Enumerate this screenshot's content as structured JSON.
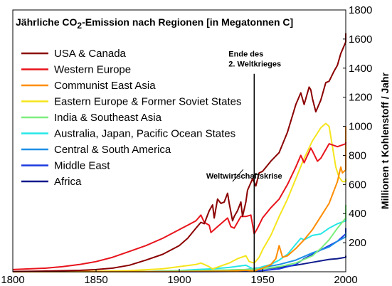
{
  "chart_data": {
    "type": "line",
    "title": "Jährliche CO2-Emission nach Regionen [in Megatonnen C]",
    "title_parts": {
      "pre": "Jährliche CO",
      "sub": "2",
      "post": "-Emission nach Regionen [in Megatonnen C]"
    },
    "ylabel": "Millionen t Kohlenstoff / Jahr",
    "xlabel": "",
    "xlim": [
      1800,
      2000
    ],
    "ylim": [
      0,
      1800
    ],
    "x_ticks": [
      "1800",
      "1850",
      "1900",
      "1950",
      "2000"
    ],
    "y_ticks": [
      "200",
      "400",
      "600",
      "800",
      "1000",
      "1200",
      "1400",
      "1600",
      "1800"
    ],
    "y_axis_position": "right",
    "grid": false,
    "legend_position": "top-left",
    "annotations": [
      {
        "text": "Ende des",
        "x": 1945,
        "y": 1480
      },
      {
        "text": "2. Weltkrieges",
        "x": 1945,
        "y": 1410
      },
      {
        "text": "Weltwirtschaftskrise",
        "x": 1929,
        "y": 640
      }
    ],
    "vline": {
      "x": 1945
    },
    "series": [
      {
        "name": "USA & Canada",
        "color": "#8b0000",
        "points": [
          [
            1800,
            2
          ],
          [
            1820,
            5
          ],
          [
            1840,
            10
          ],
          [
            1850,
            15
          ],
          [
            1860,
            25
          ],
          [
            1870,
            45
          ],
          [
            1880,
            80
          ],
          [
            1890,
            120
          ],
          [
            1900,
            180
          ],
          [
            1905,
            230
          ],
          [
            1910,
            300
          ],
          [
            1913,
            340
          ],
          [
            1915,
            330
          ],
          [
            1918,
            420
          ],
          [
            1920,
            460
          ],
          [
            1921,
            370
          ],
          [
            1923,
            500
          ],
          [
            1925,
            470
          ],
          [
            1927,
            480
          ],
          [
            1929,
            540
          ],
          [
            1930,
            470
          ],
          [
            1932,
            350
          ],
          [
            1933,
            380
          ],
          [
            1935,
            420
          ],
          [
            1937,
            480
          ],
          [
            1938,
            380
          ],
          [
            1940,
            480
          ],
          [
            1941,
            560
          ],
          [
            1944,
            640
          ],
          [
            1946,
            590
          ],
          [
            1948,
            680
          ],
          [
            1950,
            690
          ],
          [
            1955,
            760
          ],
          [
            1960,
            820
          ],
          [
            1965,
            960
          ],
          [
            1970,
            1150
          ],
          [
            1973,
            1230
          ],
          [
            1975,
            1150
          ],
          [
            1978,
            1270
          ],
          [
            1979,
            1250
          ],
          [
            1980,
            1190
          ],
          [
            1982,
            1100
          ],
          [
            1985,
            1180
          ],
          [
            1988,
            1300
          ],
          [
            1990,
            1310
          ],
          [
            1993,
            1380
          ],
          [
            1995,
            1420
          ],
          [
            1997,
            1500
          ],
          [
            2000,
            1580
          ],
          [
            2003,
            1610
          ],
          [
            2005,
            1640
          ]
        ]
      },
      {
        "name": "Western Europe",
        "color": "#e8141c",
        "points": [
          [
            1800,
            15
          ],
          [
            1820,
            25
          ],
          [
            1830,
            35
          ],
          [
            1840,
            50
          ],
          [
            1850,
            70
          ],
          [
            1860,
            100
          ],
          [
            1870,
            140
          ],
          [
            1880,
            180
          ],
          [
            1890,
            230
          ],
          [
            1900,
            290
          ],
          [
            1905,
            320
          ],
          [
            1910,
            350
          ],
          [
            1913,
            390
          ],
          [
            1915,
            340
          ],
          [
            1918,
            320
          ],
          [
            1919,
            270
          ],
          [
            1921,
            290
          ],
          [
            1925,
            330
          ],
          [
            1929,
            370
          ],
          [
            1931,
            310
          ],
          [
            1933,
            300
          ],
          [
            1935,
            340
          ],
          [
            1937,
            380
          ],
          [
            1940,
            380
          ],
          [
            1943,
            390
          ],
          [
            1945,
            260
          ],
          [
            1947,
            300
          ],
          [
            1950,
            370
          ],
          [
            1955,
            440
          ],
          [
            1960,
            500
          ],
          [
            1965,
            600
          ],
          [
            1970,
            720
          ],
          [
            1973,
            800
          ],
          [
            1975,
            750
          ],
          [
            1979,
            850
          ],
          [
            1980,
            830
          ],
          [
            1983,
            760
          ],
          [
            1985,
            780
          ],
          [
            1990,
            880
          ],
          [
            1995,
            860
          ],
          [
            2000,
            880
          ],
          [
            2005,
            890
          ]
        ]
      },
      {
        "name": "Communist East Asia",
        "color": "#ff8c00",
        "points": [
          [
            1800,
            0
          ],
          [
            1900,
            2
          ],
          [
            1930,
            5
          ],
          [
            1940,
            10
          ],
          [
            1945,
            5
          ],
          [
            1950,
            25
          ],
          [
            1955,
            50
          ],
          [
            1958,
            90
          ],
          [
            1960,
            180
          ],
          [
            1962,
            100
          ],
          [
            1965,
            110
          ],
          [
            1970,
            160
          ],
          [
            1975,
            220
          ],
          [
            1980,
            290
          ],
          [
            1985,
            380
          ],
          [
            1990,
            470
          ],
          [
            1995,
            620
          ],
          [
            1997,
            720
          ],
          [
            1998,
            680
          ],
          [
            2000,
            700
          ],
          [
            2003,
            820
          ],
          [
            2005,
            1000
          ]
        ]
      },
      {
        "name": "Eastern Europe & Former Soviet States",
        "color": "#f5e51c",
        "points": [
          [
            1800,
            0
          ],
          [
            1850,
            3
          ],
          [
            1870,
            8
          ],
          [
            1890,
            20
          ],
          [
            1900,
            35
          ],
          [
            1910,
            50
          ],
          [
            1913,
            60
          ],
          [
            1917,
            40
          ],
          [
            1920,
            20
          ],
          [
            1925,
            40
          ],
          [
            1930,
            60
          ],
          [
            1935,
            90
          ],
          [
            1940,
            110
          ],
          [
            1942,
            70
          ],
          [
            1945,
            60
          ],
          [
            1948,
            100
          ],
          [
            1950,
            150
          ],
          [
            1955,
            250
          ],
          [
            1960,
            380
          ],
          [
            1965,
            500
          ],
          [
            1970,
            640
          ],
          [
            1975,
            780
          ],
          [
            1980,
            900
          ],
          [
            1985,
            990
          ],
          [
            1988,
            1020
          ],
          [
            1990,
            1000
          ],
          [
            1992,
            860
          ],
          [
            1994,
            720
          ],
          [
            1996,
            650
          ],
          [
            1998,
            620
          ],
          [
            2000,
            620
          ],
          [
            2005,
            640
          ]
        ]
      },
      {
        "name": "India & Southeast Asia",
        "color": "#7cee7c",
        "points": [
          [
            1800,
            0
          ],
          [
            1880,
            2
          ],
          [
            1900,
            5
          ],
          [
            1920,
            10
          ],
          [
            1940,
            15
          ],
          [
            1950,
            20
          ],
          [
            1960,
            35
          ],
          [
            1970,
            60
          ],
          [
            1980,
            110
          ],
          [
            1985,
            160
          ],
          [
            1990,
            220
          ],
          [
            1995,
            300
          ],
          [
            2000,
            370
          ],
          [
            2005,
            460
          ]
        ]
      },
      {
        "name": "Australia, Japan, Pacific Ocean States",
        "color": "#27e7e7",
        "points": [
          [
            1800,
            0
          ],
          [
            1880,
            2
          ],
          [
            1900,
            8
          ],
          [
            1910,
            15
          ],
          [
            1920,
            20
          ],
          [
            1930,
            30
          ],
          [
            1940,
            45
          ],
          [
            1945,
            15
          ],
          [
            1950,
            35
          ],
          [
            1955,
            50
          ],
          [
            1960,
            80
          ],
          [
            1965,
            120
          ],
          [
            1970,
            190
          ],
          [
            1973,
            230
          ],
          [
            1975,
            220
          ],
          [
            1980,
            250
          ],
          [
            1985,
            260
          ],
          [
            1990,
            300
          ],
          [
            1995,
            330
          ],
          [
            2000,
            350
          ],
          [
            2005,
            370
          ]
        ]
      },
      {
        "name": "Central & South America",
        "color": "#1e8fe6",
        "points": [
          [
            1800,
            0
          ],
          [
            1880,
            2
          ],
          [
            1900,
            5
          ],
          [
            1920,
            10
          ],
          [
            1940,
            15
          ],
          [
            1950,
            30
          ],
          [
            1960,
            50
          ],
          [
            1970,
            80
          ],
          [
            1980,
            130
          ],
          [
            1985,
            150
          ],
          [
            1990,
            170
          ],
          [
            1995,
            210
          ],
          [
            2000,
            240
          ],
          [
            2005,
            270
          ]
        ]
      },
      {
        "name": "Middle East",
        "color": "#1a3ae0",
        "points": [
          [
            1800,
            0
          ],
          [
            1920,
            1
          ],
          [
            1940,
            3
          ],
          [
            1950,
            8
          ],
          [
            1960,
            20
          ],
          [
            1970,
            50
          ],
          [
            1975,
            90
          ],
          [
            1980,
            120
          ],
          [
            1985,
            150
          ],
          [
            1990,
            180
          ],
          [
            1995,
            210
          ],
          [
            2000,
            260
          ],
          [
            2005,
            300
          ]
        ]
      },
      {
        "name": "Africa",
        "color": "#0d1a8c",
        "points": [
          [
            1800,
            0
          ],
          [
            1900,
            3
          ],
          [
            1920,
            8
          ],
          [
            1940,
            12
          ],
          [
            1950,
            20
          ],
          [
            1960,
            30
          ],
          [
            1970,
            45
          ],
          [
            1980,
            65
          ],
          [
            1990,
            85
          ],
          [
            1995,
            90
          ],
          [
            2000,
            100
          ],
          [
            2005,
            110
          ]
        ]
      }
    ]
  }
}
